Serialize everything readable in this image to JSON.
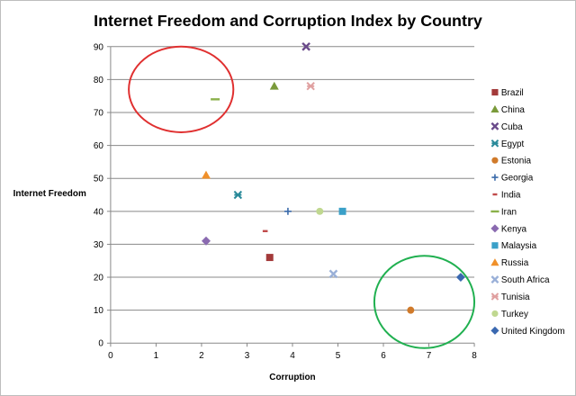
{
  "chart_data": {
    "type": "scatter",
    "title": "Internet Freedom and Corruption Index by Country",
    "xlabel": "Corruption",
    "ylabel": "Internet Freedom",
    "xlim": [
      0,
      8
    ],
    "ylim": [
      0,
      90
    ],
    "xticks": [
      0,
      1,
      2,
      3,
      4,
      5,
      6,
      7,
      8
    ],
    "yticks": [
      0,
      10,
      20,
      30,
      40,
      50,
      60,
      70,
      80,
      90
    ],
    "grid": "horizontal",
    "legend_position": "right",
    "series": [
      {
        "name": "Brazil",
        "marker": "square",
        "color": "#a33a3a",
        "x": 3.5,
        "y": 26
      },
      {
        "name": "China",
        "marker": "triangle",
        "color": "#7a9a3a",
        "x": 3.6,
        "y": 78
      },
      {
        "name": "Cuba",
        "marker": "x",
        "color": "#6a4a8a",
        "x": 4.3,
        "y": 90
      },
      {
        "name": "Egypt",
        "marker": "star",
        "color": "#2a8a9a",
        "x": 2.8,
        "y": 45
      },
      {
        "name": "Estonia",
        "marker": "circle",
        "color": "#d07a2a",
        "x": 6.6,
        "y": 10
      },
      {
        "name": "Georgia",
        "marker": "plus",
        "color": "#3a6aaa",
        "x": 3.9,
        "y": 40
      },
      {
        "name": "India",
        "marker": "dash",
        "color": "#c04a4a",
        "x": 3.4,
        "y": 34
      },
      {
        "name": "Iran",
        "marker": "longdash",
        "color": "#8ab04a",
        "x": 2.3,
        "y": 74
      },
      {
        "name": "Kenya",
        "marker": "diamond",
        "color": "#8a6ab0",
        "x": 2.1,
        "y": 31
      },
      {
        "name": "Malaysia",
        "marker": "square",
        "color": "#3aa0c8",
        "x": 5.1,
        "y": 40
      },
      {
        "name": "Russia",
        "marker": "triangle",
        "color": "#f0902a",
        "x": 2.1,
        "y": 51
      },
      {
        "name": "South Africa",
        "marker": "x",
        "color": "#9ab0d8",
        "x": 4.9,
        "y": 21
      },
      {
        "name": "Tunisia",
        "marker": "star",
        "color": "#e0a0a0",
        "x": 4.4,
        "y": 78
      },
      {
        "name": "Turkey",
        "marker": "circle",
        "color": "#c0d890",
        "x": 4.6,
        "y": 40
      },
      {
        "name": "United Kingdom",
        "marker": "diamond",
        "color": "#3a68b0",
        "x": 7.7,
        "y": 20
      }
    ],
    "annotations": [
      {
        "shape": "ellipse",
        "color": "#e03030",
        "cx": 1.55,
        "cy": 77,
        "rx": 1.15,
        "ry": 13
      },
      {
        "shape": "ellipse",
        "color": "#20b050",
        "cx": 6.9,
        "cy": 12.5,
        "rx": 1.1,
        "ry": 14
      }
    ]
  }
}
